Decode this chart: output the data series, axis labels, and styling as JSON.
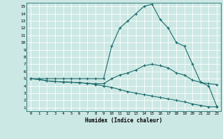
{
  "xlabel": "Humidex (Indice chaleur)",
  "ylabel": "",
  "bg_color": "#cce8e4",
  "line_color": "#1a6b6b",
  "grid_color": "#ffffff",
  "xlim": [
    -0.5,
    23.5
  ],
  "ylim": [
    0.5,
    15.5
  ],
  "xticks": [
    0,
    1,
    2,
    3,
    4,
    5,
    6,
    7,
    8,
    9,
    10,
    11,
    12,
    13,
    14,
    15,
    16,
    17,
    18,
    19,
    20,
    21,
    22,
    23
  ],
  "yticks": [
    1,
    2,
    3,
    4,
    5,
    6,
    7,
    8,
    9,
    10,
    11,
    12,
    13,
    14,
    15
  ],
  "line_max": {
    "x": [
      0,
      1,
      2,
      3,
      4,
      5,
      6,
      7,
      8,
      9,
      10,
      11,
      12,
      13,
      14,
      15,
      16,
      17,
      18,
      19,
      20,
      21,
      22,
      23
    ],
    "y": [
      5.0,
      5.0,
      5.0,
      5.0,
      5.0,
      5.0,
      5.0,
      5.0,
      5.0,
      5.0,
      9.5,
      12.0,
      13.0,
      14.0,
      15.0,
      15.3,
      13.2,
      12.0,
      10.0,
      9.5,
      7.0,
      4.5,
      4.0,
      1.2
    ]
  },
  "line_mean": {
    "x": [
      0,
      1,
      2,
      3,
      4,
      5,
      6,
      7,
      8,
      9,
      10,
      11,
      12,
      13,
      14,
      15,
      16,
      17,
      18,
      19,
      20,
      21,
      22,
      23
    ],
    "y": [
      5.0,
      4.9,
      4.7,
      4.6,
      4.55,
      4.5,
      4.45,
      4.35,
      4.3,
      4.3,
      5.0,
      5.5,
      5.8,
      6.2,
      6.8,
      7.0,
      6.8,
      6.5,
      5.8,
      5.5,
      4.8,
      4.5,
      4.3,
      4.2
    ]
  },
  "line_min": {
    "x": [
      0,
      1,
      2,
      3,
      4,
      5,
      6,
      7,
      8,
      9,
      10,
      11,
      12,
      13,
      14,
      15,
      16,
      17,
      18,
      19,
      20,
      21,
      22,
      23
    ],
    "y": [
      5.0,
      4.9,
      4.7,
      4.6,
      4.55,
      4.5,
      4.45,
      4.35,
      4.2,
      4.0,
      3.8,
      3.5,
      3.2,
      3.0,
      2.8,
      2.6,
      2.4,
      2.2,
      2.0,
      1.8,
      1.5,
      1.3,
      1.1,
      1.1
    ]
  }
}
